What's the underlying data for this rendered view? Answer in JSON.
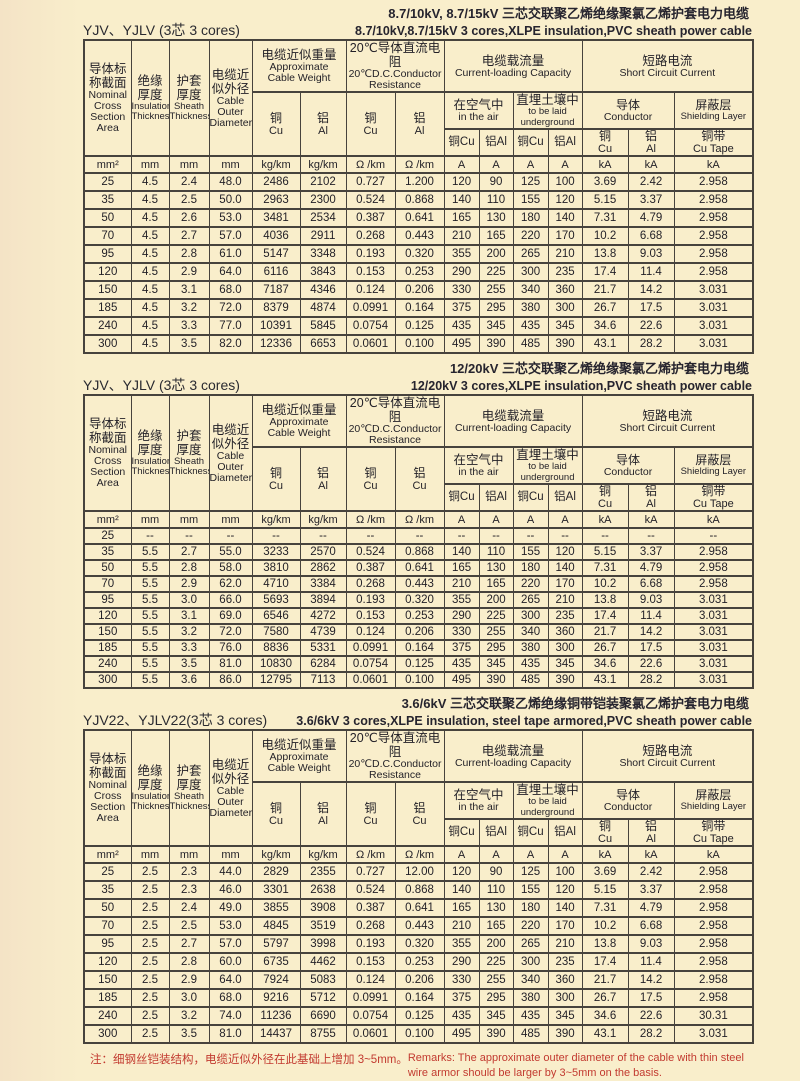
{
  "page": {
    "bg": "#f9eecb",
    "note_color": "#c23a30",
    "border_color": "#47433d"
  },
  "header": {
    "c1": {
      "cn": "导体标\n称截面",
      "en": "Nominal\nCross\nSection\nArea"
    },
    "c2": {
      "cn": "绝缘\n厚度",
      "en": "Insulation\nThickness"
    },
    "c3": {
      "cn": "护套\n厚度",
      "en": "Sheath\nThickness"
    },
    "c4": {
      "cn": "电缆近\n似外径",
      "en": "Cable\nOuter\nDiameter"
    },
    "weight": {
      "cn": "电缆近似重量",
      "en": "Approximate\nCable Weight"
    },
    "resistance": {
      "cn": "20℃导体直流电阻",
      "en": "20℃D.C.Conductor\nResistance"
    },
    "capacity": {
      "cn": "电缆载流量",
      "en": "Current-loading Capacity"
    },
    "short_circuit": {
      "cn": "短路电流",
      "en": "Short  Circuit Current"
    },
    "in_air": {
      "cn": "在空气中",
      "en": "in the air"
    },
    "underground": {
      "cn": "直埋土壤中",
      "en": "to be laid\nunderground"
    },
    "conductor": {
      "cn": "导体",
      "en": "Conductor"
    },
    "shielding": {
      "cn": "屏蔽层",
      "en": "Shielding Layer"
    },
    "cu": {
      "cn": "铜",
      "en": "Cu"
    },
    "al": {
      "cn": "铝",
      "en": "Al"
    },
    "cu_tape": {
      "cn": "铜带",
      "en": "Cu Tape"
    },
    "cap_sub": [
      "铜Cu",
      "铝Al",
      "铜Cu",
      "铝Al"
    ],
    "units": [
      "mm²",
      "mm",
      "mm",
      "mm",
      "kg/km",
      "kg/km",
      "Ω /km",
      "Ω /km",
      "A",
      "A",
      "A",
      "A",
      "kA",
      "kA",
      "kA"
    ]
  },
  "sections": [
    {
      "model": "YJV、YJLV (3芯 3 cores)",
      "title_cn": "8.7/10kV, 8.7/15kV 三芯交联聚乙烯绝缘聚氯乙烯护套电力电缆",
      "title_en": "8.7/10kV,8.7/15kV 3 cores,XLPE insulation,PVC sheath power cable",
      "res_al": {
        "cn": "铝",
        "en": "Al"
      },
      "rows": [
        [
          "25",
          "4.5",
          "2.4",
          "48.0",
          "2486",
          "2102",
          "0.727",
          "1.200",
          "120",
          "90",
          "125",
          "100",
          "3.69",
          "2.42",
          "2.958"
        ],
        [
          "35",
          "4.5",
          "2.5",
          "50.0",
          "2963",
          "2300",
          "0.524",
          "0.868",
          "140",
          "110",
          "155",
          "120",
          "5.15",
          "3.37",
          "2.958"
        ],
        [
          "50",
          "4.5",
          "2.6",
          "53.0",
          "3481",
          "2534",
          "0.387",
          "0.641",
          "165",
          "130",
          "180",
          "140",
          "7.31",
          "4.79",
          "2.958"
        ],
        [
          "70",
          "4.5",
          "2.7",
          "57.0",
          "4036",
          "2911",
          "0.268",
          "0.443",
          "210",
          "165",
          "220",
          "170",
          "10.2",
          "6.68",
          "2.958"
        ],
        [
          "95",
          "4.5",
          "2.8",
          "61.0",
          "5147",
          "3348",
          "0.193",
          "0.320",
          "355",
          "200",
          "265",
          "210",
          "13.8",
          "9.03",
          "2.958"
        ],
        [
          "120",
          "4.5",
          "2.9",
          "64.0",
          "6116",
          "3843",
          "0.153",
          "0.253",
          "290",
          "225",
          "300",
          "235",
          "17.4",
          "11.4",
          "2.958"
        ],
        [
          "150",
          "4.5",
          "3.1",
          "68.0",
          "7187",
          "4346",
          "0.124",
          "0.206",
          "330",
          "255",
          "340",
          "360",
          "21.7",
          "14.2",
          "3.031"
        ],
        [
          "185",
          "4.5",
          "3.2",
          "72.0",
          "8379",
          "4874",
          "0.0991",
          "0.164",
          "375",
          "295",
          "380",
          "300",
          "26.7",
          "17.5",
          "3.031"
        ],
        [
          "240",
          "4.5",
          "3.3",
          "77.0",
          "10391",
          "5845",
          "0.0754",
          "0.125",
          "435",
          "345",
          "435",
          "345",
          "34.6",
          "22.6",
          "3.031"
        ],
        [
          "300",
          "4.5",
          "3.5",
          "82.0",
          "12336",
          "6653",
          "0.0601",
          "0.100",
          "495",
          "390",
          "485",
          "390",
          "43.1",
          "28.2",
          "3.031"
        ]
      ]
    },
    {
      "model": "YJV、YJLV (3芯 3 cores)",
      "title_cn": "12/20kV 三芯交联聚乙烯绝缘聚氯乙烯护套电力电缆",
      "title_en": "12/20kV 3 cores,XLPE insulation,PVC sheath power cable",
      "res_al": {
        "cn": "铝",
        "en": "Cu"
      },
      "rows": [
        [
          "25",
          "--",
          "--",
          "--",
          "--",
          "--",
          "--",
          "--",
          "--",
          "--",
          "--",
          "--",
          "--",
          "--",
          "--"
        ],
        [
          "35",
          "5.5",
          "2.7",
          "55.0",
          "3233",
          "2570",
          "0.524",
          "0.868",
          "140",
          "110",
          "155",
          "120",
          "5.15",
          "3.37",
          "2.958"
        ],
        [
          "50",
          "5.5",
          "2.8",
          "58.0",
          "3810",
          "2862",
          "0.387",
          "0.641",
          "165",
          "130",
          "180",
          "140",
          "7.31",
          "4.79",
          "2.958"
        ],
        [
          "70",
          "5.5",
          "2.9",
          "62.0",
          "4710",
          "3384",
          "0.268",
          "0.443",
          "210",
          "165",
          "220",
          "170",
          "10.2",
          "6.68",
          "2.958"
        ],
        [
          "95",
          "5.5",
          "3.0",
          "66.0",
          "5693",
          "3894",
          "0.193",
          "0.320",
          "355",
          "200",
          "265",
          "210",
          "13.8",
          "9.03",
          "3.031"
        ],
        [
          "120",
          "5.5",
          "3.1",
          "69.0",
          "6546",
          "4272",
          "0.153",
          "0.253",
          "290",
          "225",
          "300",
          "235",
          "17.4",
          "11.4",
          "3.031"
        ],
        [
          "150",
          "5.5",
          "3.2",
          "72.0",
          "7580",
          "4739",
          "0.124",
          "0.206",
          "330",
          "255",
          "340",
          "360",
          "21.7",
          "14.2",
          "3.031"
        ],
        [
          "185",
          "5.5",
          "3.3",
          "76.0",
          "8836",
          "5331",
          "0.0991",
          "0.164",
          "375",
          "295",
          "380",
          "300",
          "26.7",
          "17.5",
          "3.031"
        ],
        [
          "240",
          "5.5",
          "3.5",
          "81.0",
          "10830",
          "6284",
          "0.0754",
          "0.125",
          "435",
          "345",
          "435",
          "345",
          "34.6",
          "22.6",
          "3.031"
        ],
        [
          "300",
          "5.5",
          "3.6",
          "86.0",
          "12795",
          "7113",
          "0.0601",
          "0.100",
          "495",
          "390",
          "485",
          "390",
          "43.1",
          "28.2",
          "3.031"
        ]
      ]
    },
    {
      "model": "YJV22、YJLV22(3芯 3 cores)",
      "title_cn": "3.6/6kV 三芯交联聚乙烯绝缘铜带铠装聚氯乙烯护套电力电缆",
      "title_en": "3.6/6kV 3 cores,XLPE insulation, steel tape armored,PVC sheath power cable",
      "res_al": {
        "cn": "铝",
        "en": "Cu"
      },
      "rows": [
        [
          "25",
          "2.5",
          "2.3",
          "44.0",
          "2829",
          "2355",
          "0.727",
          "12.00",
          "120",
          "90",
          "125",
          "100",
          "3.69",
          "2.42",
          "2.958"
        ],
        [
          "35",
          "2.5",
          "2.3",
          "46.0",
          "3301",
          "2638",
          "0.524",
          "0.868",
          "140",
          "110",
          "155",
          "120",
          "5.15",
          "3.37",
          "2.958"
        ],
        [
          "50",
          "2.5",
          "2.4",
          "49.0",
          "3855",
          "3908",
          "0.387",
          "0.641",
          "165",
          "130",
          "180",
          "140",
          "7.31",
          "4.79",
          "2.958"
        ],
        [
          "70",
          "2.5",
          "2.5",
          "53.0",
          "4845",
          "3519",
          "0.268",
          "0.443",
          "210",
          "165",
          "220",
          "170",
          "10.2",
          "6.68",
          "2.958"
        ],
        [
          "95",
          "2.5",
          "2.7",
          "57.0",
          "5797",
          "3998",
          "0.193",
          "0.320",
          "355",
          "200",
          "265",
          "210",
          "13.8",
          "9.03",
          "2.958"
        ],
        [
          "120",
          "2.5",
          "2.8",
          "60.0",
          "6735",
          "4462",
          "0.153",
          "0.253",
          "290",
          "225",
          "300",
          "235",
          "17.4",
          "11.4",
          "2.958"
        ],
        [
          "150",
          "2.5",
          "2.9",
          "64.0",
          "7924",
          "5083",
          "0.124",
          "0.206",
          "330",
          "255",
          "340",
          "360",
          "21.7",
          "14.2",
          "2.958"
        ],
        [
          "185",
          "2.5",
          "3.0",
          "68.0",
          "9216",
          "5712",
          "0.0991",
          "0.164",
          "375",
          "295",
          "380",
          "300",
          "26.7",
          "17.5",
          "2.958"
        ],
        [
          "240",
          "2.5",
          "3.2",
          "74.0",
          "11236",
          "6690",
          "0.0754",
          "0.125",
          "435",
          "345",
          "435",
          "345",
          "34.6",
          "22.6",
          "30.31"
        ],
        [
          "300",
          "2.5",
          "3.5",
          "81.0",
          "14437",
          "8755",
          "0.0601",
          "0.100",
          "495",
          "390",
          "485",
          "390",
          "43.1",
          "28.2",
          "3.031"
        ]
      ]
    }
  ],
  "footer": {
    "label": "注：",
    "note_cn": "细钢丝铠装结构，电缆近似外径在此基础上增加 3~5mm。",
    "note_en": "Remarks:  The approximate  outer diameter of the cable with thin steel wire armor should be larger by 3~5mm on the basis."
  }
}
